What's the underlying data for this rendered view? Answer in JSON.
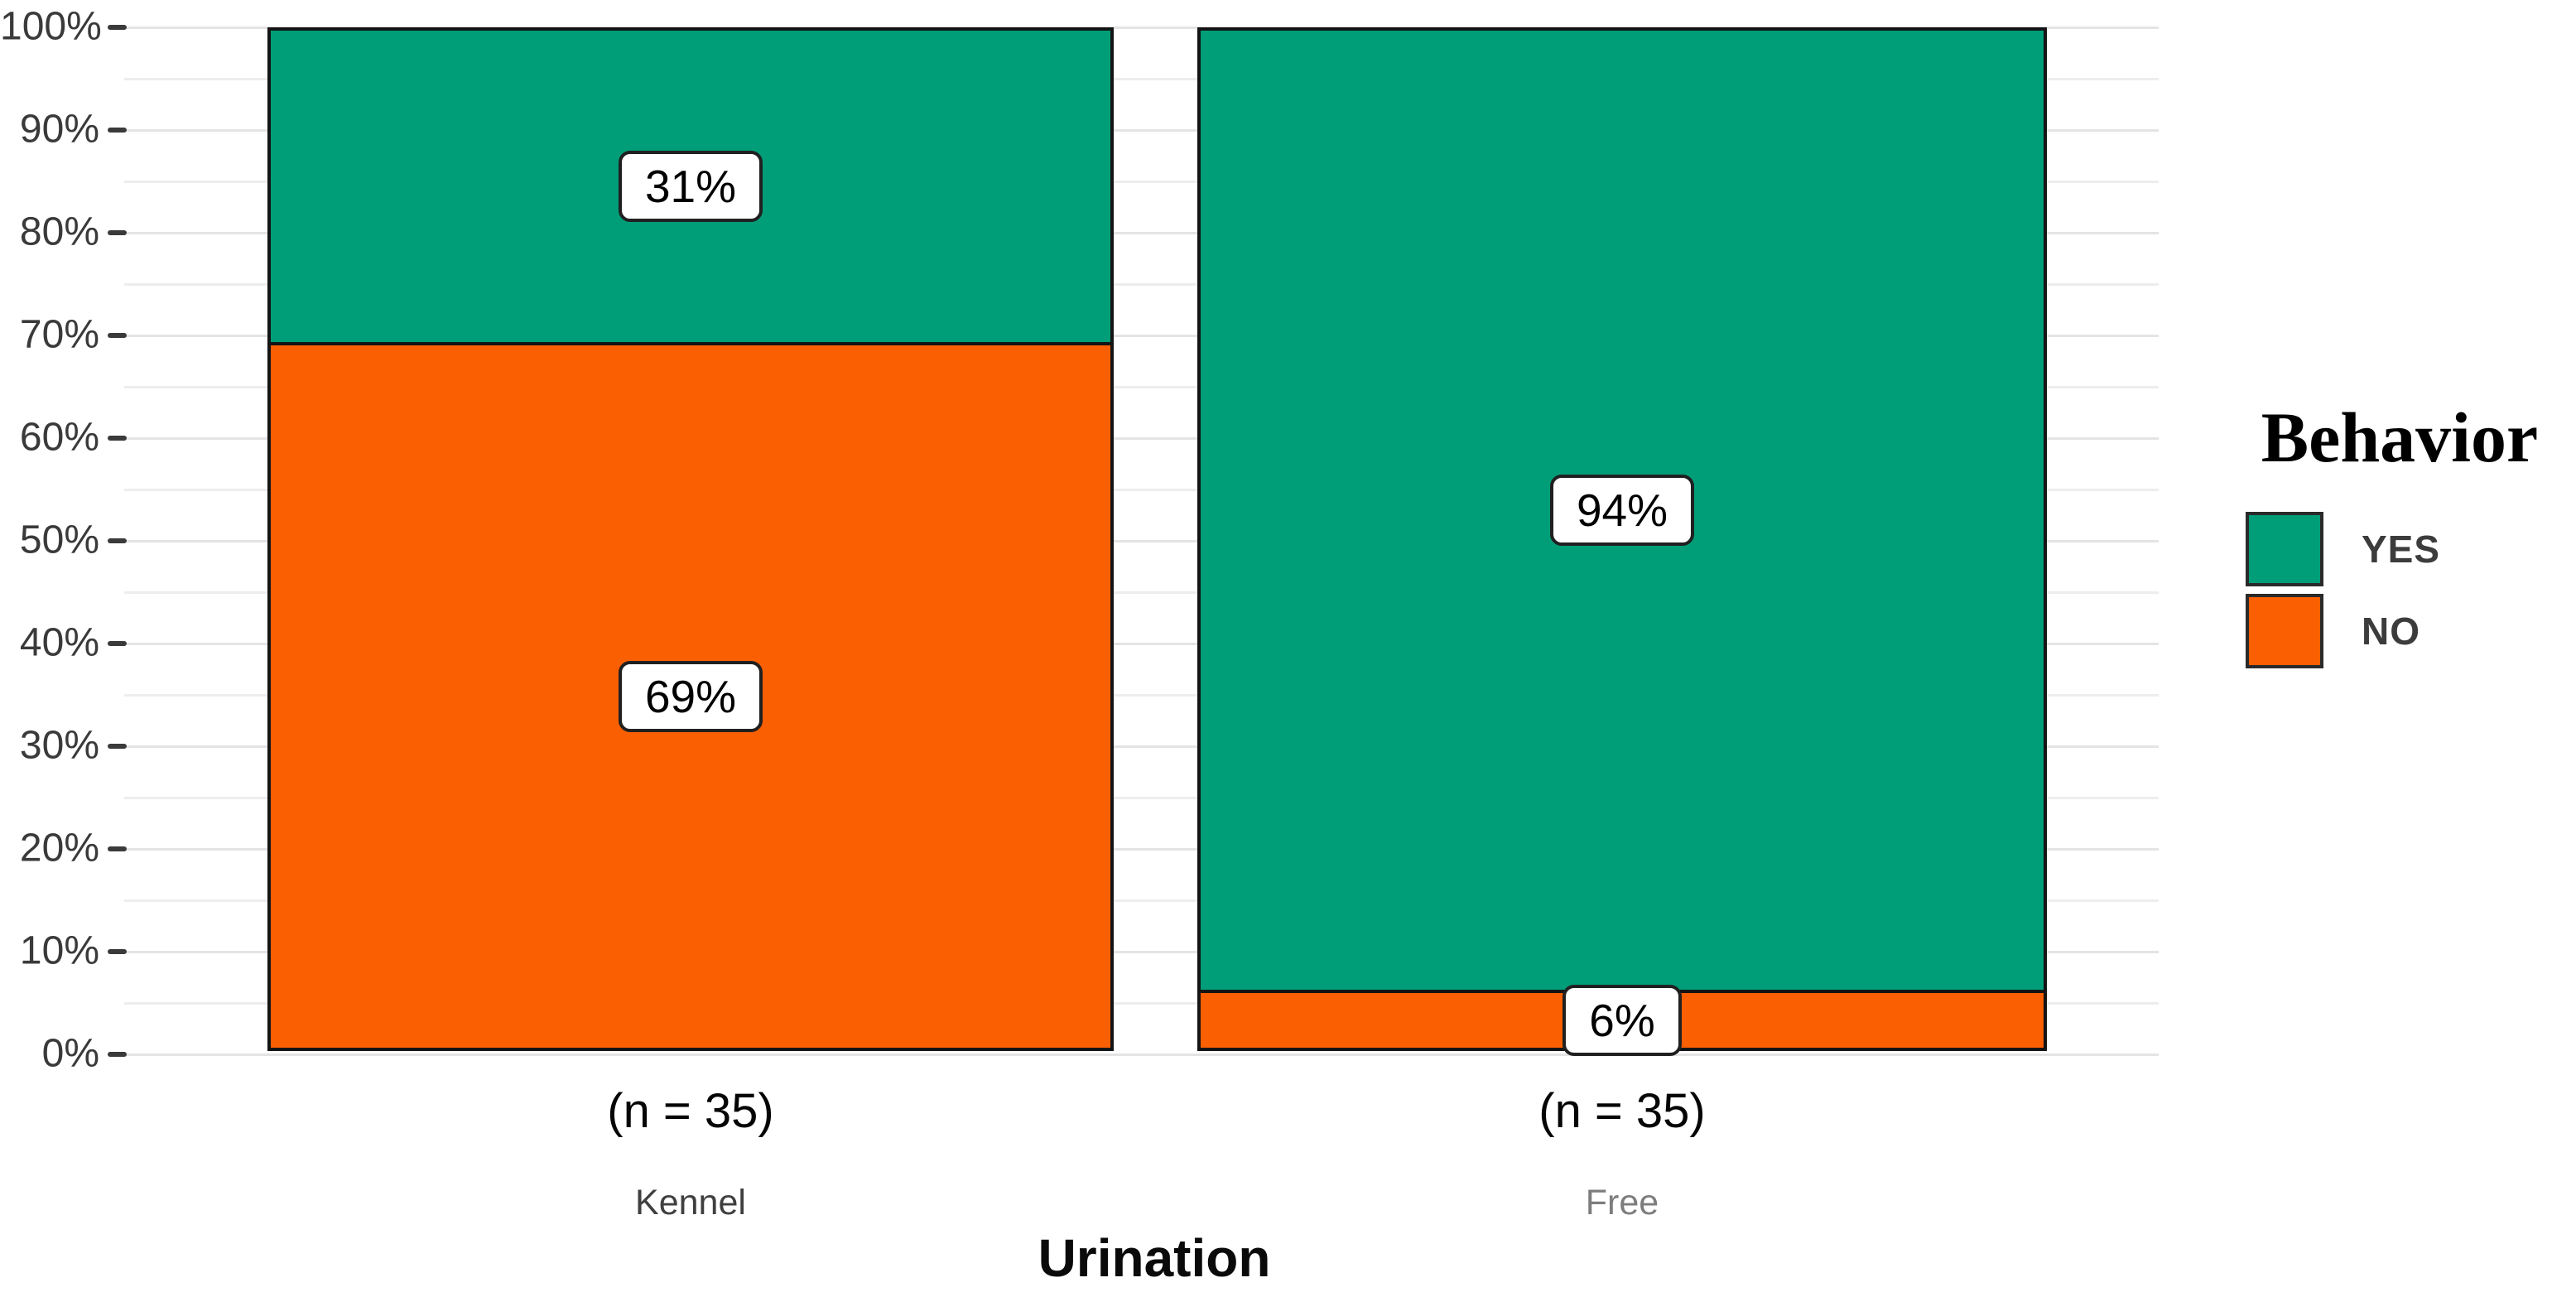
{
  "chart_data": {
    "type": "bar",
    "subtype": "percent-stacked-column",
    "title": "",
    "xlabel": "Urination",
    "ylabel": "",
    "legend_title": "Behavior",
    "legend_position": "right",
    "categories": [
      {
        "name": "Kennel",
        "n_label": "(n = 35)",
        "name_color": "#3f3f3f"
      },
      {
        "name": "Free",
        "n_label": "(n = 35)",
        "name_color": "#7d7d7d"
      }
    ],
    "series": [
      {
        "name": "YES",
        "color": "#009E78",
        "values": [
          31,
          94
        ],
        "labels": [
          "31%",
          "94%"
        ]
      },
      {
        "name": "NO",
        "color": "#FA5F02",
        "values": [
          69,
          6
        ],
        "labels": [
          "69%",
          "6%"
        ]
      }
    ],
    "y_axis": {
      "min": 0,
      "max": 100,
      "major_step": 10,
      "minor_step": 5,
      "tick_labels": [
        "0%",
        "10%",
        "20%",
        "30%",
        "40%",
        "50%",
        "60%",
        "70%",
        "80%",
        "90%",
        "100%"
      ]
    },
    "grid": {
      "horizontal": true,
      "minor": true,
      "vertical": false
    },
    "colors": {
      "bar_border": "#141414",
      "label_box_bg": "#FFFFFF",
      "label_box_border": "#202020",
      "axis_text": "#3a3a3a",
      "yes_green": "#009E78",
      "no_orange": "#FA5F02"
    }
  }
}
